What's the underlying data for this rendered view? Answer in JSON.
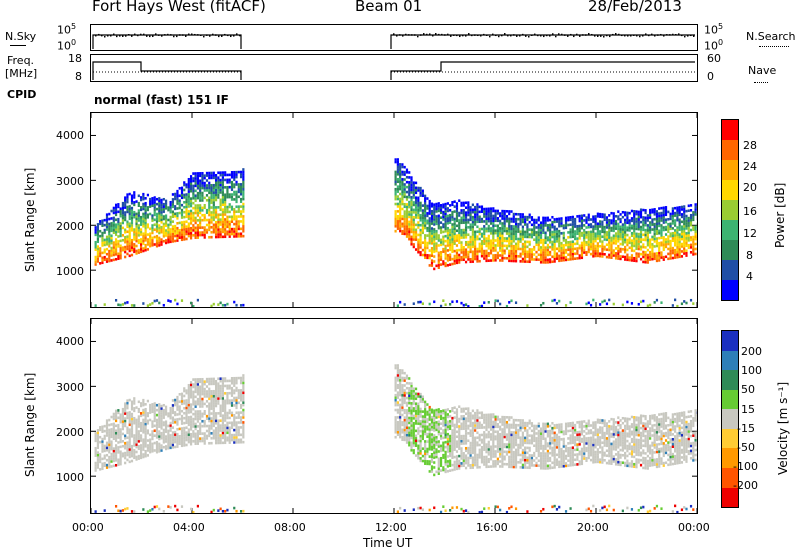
{
  "header": {
    "radar": "Fort Hays West (fitACF)",
    "beam": "Beam 01",
    "date": "28/Feb/2013"
  },
  "left_labels": {
    "nsky": "N.Sky",
    "freq_line1": "Freq.",
    "freq_line2": "[MHz]",
    "cpid": "CPID"
  },
  "right_labels": {
    "nsearch": "N.Search",
    "nave": "Nave"
  },
  "noise_panel": {
    "left_ticks": [
      "10^5",
      "10^0"
    ],
    "right_ticks": [
      "10^5",
      "10^0"
    ]
  },
  "freq_panel": {
    "left_ticks": [
      "18",
      "8"
    ],
    "right_ticks": [
      "60",
      "0"
    ]
  },
  "cpid_text": "normal (fast) 151 IF",
  "power_panel": {
    "ylabel": "Slant Range [km]",
    "yticks": [
      "4000",
      "3000",
      "2000",
      "1000"
    ],
    "colorbar_label": "Power [dB]",
    "colorbar_ticks": [
      "28",
      "24",
      "20",
      "16",
      "12",
      "8",
      "4"
    ],
    "colors": [
      "#0000ff",
      "#1f4ea6",
      "#2e8b57",
      "#3cb371",
      "#9acd32",
      "#ffd700",
      "#ffa500",
      "#ff6600",
      "#ff0000"
    ]
  },
  "velocity_panel": {
    "ylabel": "Slant Range [km]",
    "yticks": [
      "4000",
      "3000",
      "2000",
      "1000"
    ],
    "colorbar_label": "Velocity [m s⁻¹]",
    "colorbar_ticks": [
      "200",
      "100",
      "50",
      "15",
      "-15",
      "-50",
      "-100",
      "-200"
    ],
    "colors": [
      "#1a2fc0",
      "#2d7fb8",
      "#2e8b57",
      "#66cc33",
      "#c8c8c0",
      "#ffcc33",
      "#ff9900",
      "#ff5500",
      "#ee0000"
    ]
  },
  "x_axis": {
    "label": "Time UT",
    "ticks": [
      "00:00",
      "04:00",
      "08:00",
      "12:00",
      "16:00",
      "20:00",
      "00:00"
    ]
  },
  "chart_data": {
    "type": "heatmap",
    "title": "Fort Hays West (fitACF) Beam 01 28/Feb/2013",
    "xlabel": "Time UT",
    "ylabel": "Slant Range [km]",
    "xlim_hours": [
      0,
      24
    ],
    "ylim_km": [
      180,
      4500
    ],
    "data_gap_hours": [
      6,
      12
    ],
    "frequency_mhz": [
      {
        "start": 0,
        "end": 2,
        "value": 14
      },
      {
        "start": 2,
        "end": 6,
        "value": 11
      },
      {
        "start": 12,
        "end": 14,
        "value": 11
      },
      {
        "start": 14,
        "end": 24,
        "value": 14
      }
    ],
    "power_scatter_band_km": [
      {
        "t": 0.1,
        "low": 1150,
        "high": 2000
      },
      {
        "t": 1.5,
        "low": 1350,
        "high": 2800
      },
      {
        "t": 3.0,
        "low": 1650,
        "high": 2600
      },
      {
        "t": 4.0,
        "low": 1750,
        "high": 3200
      },
      {
        "t": 12.2,
        "low": 1900,
        "high": 3500
      },
      {
        "t": 13.5,
        "low": 1050,
        "high": 2500
      },
      {
        "t": 14.5,
        "low": 1200,
        "high": 2600
      },
      {
        "t": 16,
        "low": 1250,
        "high": 2400
      },
      {
        "t": 18,
        "low": 1200,
        "high": 2200
      },
      {
        "t": 20,
        "low": 1350,
        "high": 2300
      },
      {
        "t": 22,
        "low": 1200,
        "high": 2400
      },
      {
        "t": 24,
        "low": 1400,
        "high": 2500
      }
    ],
    "power_colorbar_db": [
      4,
      8,
      12,
      16,
      20,
      24,
      28
    ],
    "velocity_colorbar_ms": [
      -200,
      -100,
      -50,
      -15,
      15,
      50,
      100,
      200
    ]
  }
}
